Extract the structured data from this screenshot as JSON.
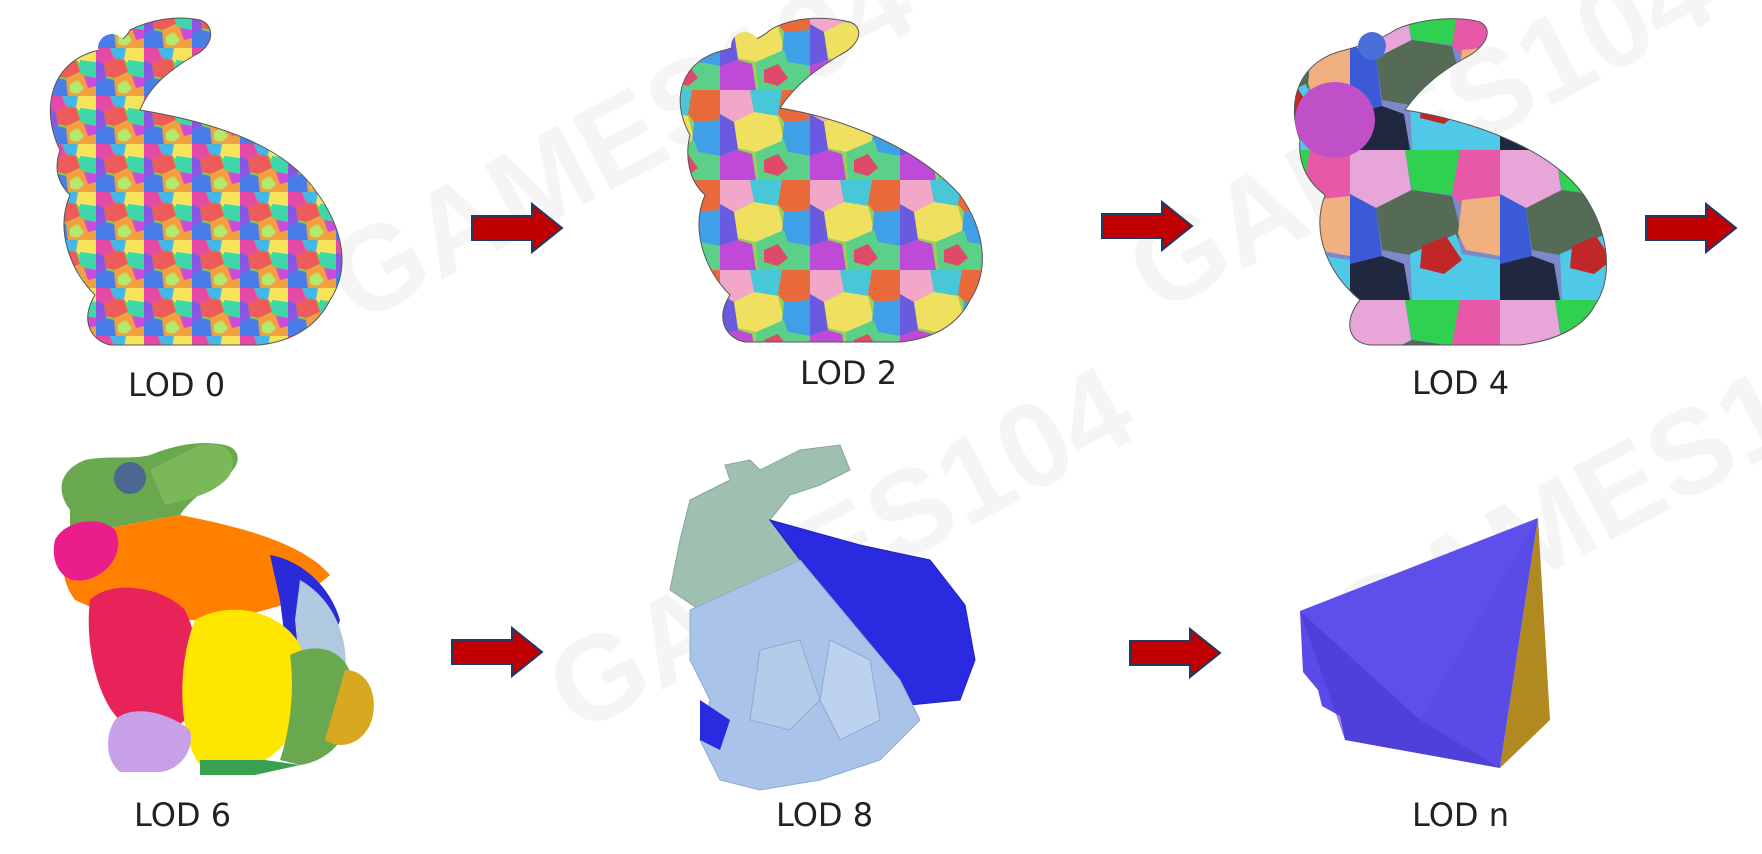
{
  "lod_labels": {
    "lod0": "LOD 0",
    "lod2": "LOD 2",
    "lod4": "LOD 4",
    "lod6": "LOD 6",
    "lod8": "LOD 8",
    "lodn": "LOD n"
  },
  "watermark": "GAMES104",
  "colors": {
    "arrow_fill": "#c00000",
    "arrow_stroke": "#203864",
    "lod6": [
      "#6aa84f",
      "#e91e8c",
      "#ff7f00",
      "#e8235a",
      "#ffe600",
      "#2a2ad8",
      "#c8a0e8",
      "#b0c8e0",
      "#d8a820"
    ],
    "lod8": [
      "#9fbfb0",
      "#2a2ae0",
      "#a9c4e8"
    ],
    "lodn": [
      "#5a4ae8",
      "#b08a20"
    ]
  }
}
